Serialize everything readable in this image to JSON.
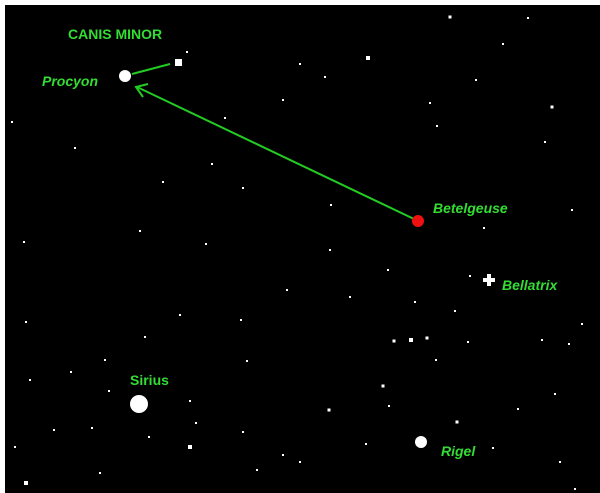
{
  "constellation": "CANIS MINOR",
  "stars": [
    {
      "label": "Procyon"
    },
    {
      "label": "Betelgeuse"
    },
    {
      "label": "Bellatrix"
    },
    {
      "label": "Sirius"
    },
    {
      "label": "Rigel"
    }
  ]
}
